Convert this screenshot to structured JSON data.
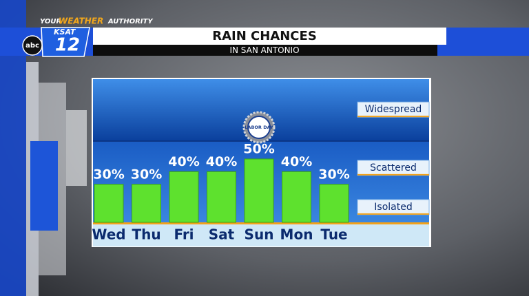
{
  "chart_data": {
    "type": "bar",
    "title": "RAIN CHANCES",
    "subtitle": "IN SAN ANTONIO",
    "categories": [
      "Wed",
      "Thu",
      "Fri",
      "Sat",
      "Sun",
      "Mon",
      "Tue"
    ],
    "values": [
      30,
      30,
      40,
      40,
      50,
      40,
      30
    ],
    "value_labels": [
      "30%",
      "30%",
      "40%",
      "40%",
      "50%",
      "40%",
      "30%"
    ],
    "color": "#5ee12e",
    "ylim": [
      0,
      113
    ],
    "yticks": [
      {
        "value": 12,
        "label": "Isolated"
      },
      {
        "value": 43,
        "label": "Scattered"
      },
      {
        "value": 89,
        "label": "Widespread"
      }
    ],
    "annotation": {
      "text": "LABOR DAY",
      "category": "Sun"
    }
  },
  "branding": {
    "tagline_1": "YOUR",
    "tagline_2": "WEATHER",
    "tagline_3": "AUTHORITY",
    "station": "KSAT",
    "channel": "12",
    "network": "abc"
  }
}
